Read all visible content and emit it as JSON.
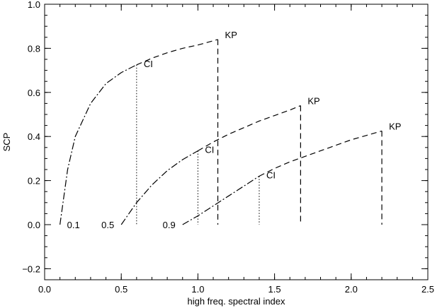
{
  "chart_data": {
    "type": "line",
    "title": "",
    "xlabel": "high freq. spectral index",
    "ylabel": "SCP",
    "xlim": [
      0.0,
      2.5
    ],
    "ylim": [
      -0.25,
      1.0
    ],
    "xticks": [
      0.0,
      0.5,
      1.0,
      1.5,
      2.0,
      2.5
    ],
    "yticks": [
      -0.2,
      0.0,
      0.2,
      0.4,
      0.6,
      0.8,
      1.0
    ],
    "xtick_labels": [
      "0.0",
      "0.5",
      "1.0",
      "1.5",
      "2.0",
      "2.5"
    ],
    "ytick_labels": [
      "−0.2",
      "0.0",
      "0.2",
      "0.4",
      "0.6",
      "0.8",
      "1.0"
    ],
    "grid": false,
    "legend": "none",
    "series": [
      {
        "start_label": "0.1",
        "ci_label": "CI",
        "kp_label": "KP",
        "x": [
          0.1,
          0.15,
          0.2,
          0.3,
          0.4,
          0.5,
          0.6,
          0.7,
          0.8,
          0.9,
          1.0,
          1.13
        ],
        "y": [
          0.0,
          0.25,
          0.4,
          0.55,
          0.64,
          0.69,
          0.725,
          0.755,
          0.78,
          0.8,
          0.815,
          0.84
        ],
        "ci_x": 0.6,
        "ci_y": 0.725,
        "kp_x": 1.13,
        "kp_y": 0.84
      },
      {
        "start_label": "0.5",
        "ci_label": "CI",
        "kp_label": "KP",
        "x": [
          0.5,
          0.6,
          0.7,
          0.8,
          0.9,
          1.0,
          1.1,
          1.2,
          1.3,
          1.4,
          1.5,
          1.6,
          1.67
        ],
        "y": [
          0.0,
          0.1,
          0.18,
          0.245,
          0.295,
          0.335,
          0.375,
          0.41,
          0.44,
          0.47,
          0.495,
          0.52,
          0.54
        ],
        "ci_x": 1.0,
        "ci_y": 0.335,
        "kp_x": 1.67,
        "kp_y": 0.54
      },
      {
        "start_label": "0.9",
        "ci_label": "CI",
        "kp_label": "KP",
        "x": [
          0.9,
          1.0,
          1.1,
          1.2,
          1.3,
          1.4,
          1.5,
          1.6,
          1.7,
          1.8,
          1.9,
          2.0,
          2.1,
          2.2
        ],
        "y": [
          0.0,
          0.04,
          0.085,
          0.13,
          0.175,
          0.22,
          0.255,
          0.285,
          0.31,
          0.335,
          0.36,
          0.385,
          0.405,
          0.425
        ],
        "ci_x": 1.4,
        "ci_y": 0.22,
        "kp_x": 2.2,
        "kp_y": 0.425
      }
    ]
  }
}
